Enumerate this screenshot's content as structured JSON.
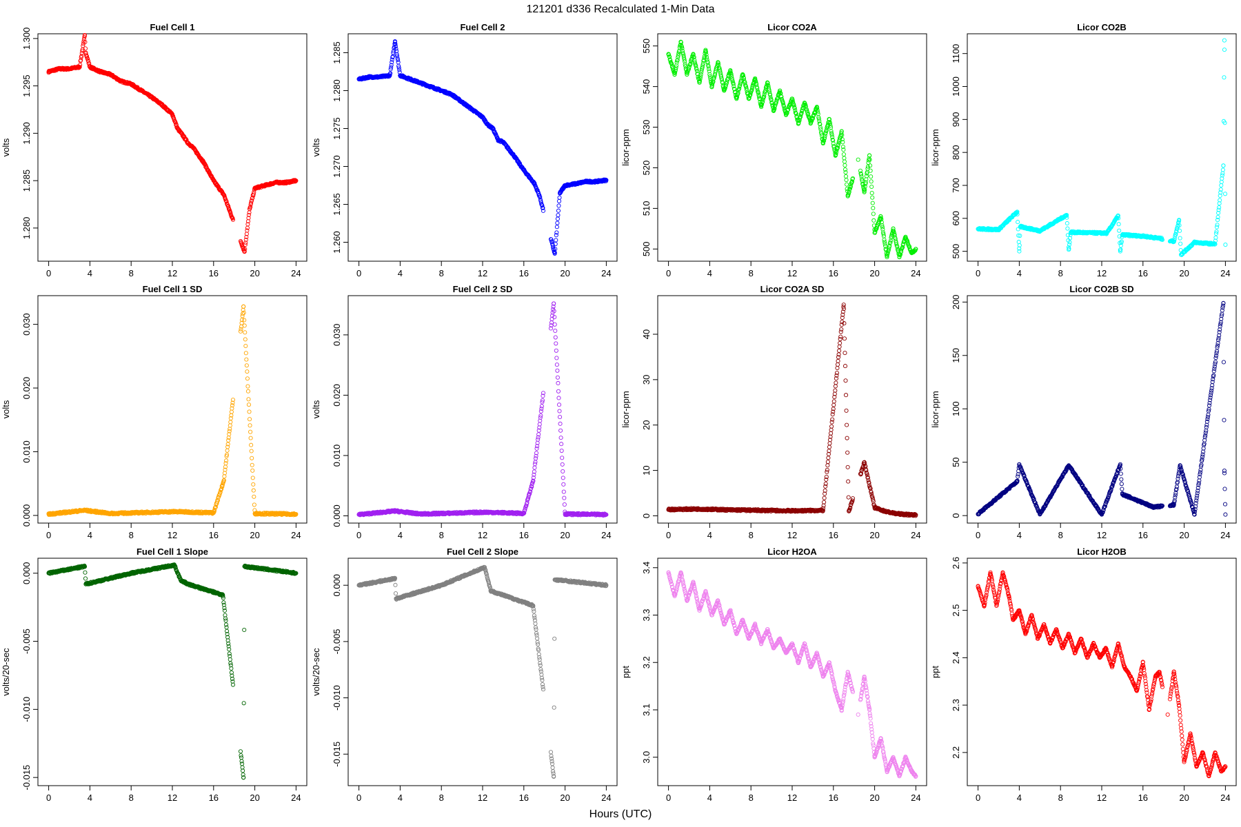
{
  "figure": {
    "title": "121201   d336   Recalculated 1-Min Data",
    "xlabel": "Hours (UTC)",
    "xticks": [
      "0",
      "4",
      "8",
      "12",
      "16",
      "20",
      "24"
    ]
  },
  "chart_data": [
    {
      "type": "scatter",
      "title": "Fuel Cell 1",
      "ylabel": "volts",
      "color": "#ff0000",
      "xlim": [
        0,
        24
      ],
      "ylim": [
        1.2765,
        1.3005
      ],
      "yticks": [
        "1.280",
        "1.285",
        "1.290",
        "1.295",
        "1.300"
      ],
      "ytick_values": [
        1.28,
        1.285,
        1.29,
        1.295,
        1.3
      ],
      "series": [
        {
          "name": "Fuel Cell 1",
          "x": [
            0,
            1,
            2,
            3,
            3.5,
            3.6,
            4,
            5,
            6,
            7,
            8,
            9,
            10,
            11,
            12,
            12.5,
            13,
            13.5,
            14,
            15,
            16,
            17,
            17.5,
            19,
            19.5,
            20,
            21,
            22,
            23,
            24
          ],
          "y": [
            1.2965,
            1.2968,
            1.2968,
            1.297,
            1.3003,
            1.2985,
            1.297,
            1.2965,
            1.2962,
            1.2955,
            1.2952,
            1.2945,
            1.2938,
            1.293,
            1.292,
            1.2905,
            1.2898,
            1.289,
            1.2885,
            1.287,
            1.285,
            1.2835,
            1.282,
            1.2775,
            1.282,
            1.2842,
            1.2845,
            1.2848,
            1.2848,
            1.285
          ]
        }
      ]
    },
    {
      "type": "scatter",
      "title": "Fuel Cell 2",
      "ylabel": "volts",
      "color": "#0000ff",
      "xlim": [
        0,
        24
      ],
      "ylim": [
        1.2575,
        1.2875
      ],
      "yticks": [
        "1.260",
        "1.265",
        "1.270",
        "1.275",
        "1.280",
        "1.285"
      ],
      "ytick_values": [
        1.26,
        1.265,
        1.27,
        1.275,
        1.28,
        1.285
      ],
      "series": [
        {
          "name": "Fuel Cell 2",
          "x": [
            0,
            1,
            2,
            3,
            3.5,
            4,
            5,
            6,
            7,
            8,
            9,
            10,
            11,
            12,
            12.5,
            13,
            13.5,
            14,
            15,
            16,
            17,
            17.5,
            19,
            19.5,
            20,
            21,
            22,
            23,
            24
          ],
          "y": [
            1.2815,
            1.2818,
            1.2818,
            1.282,
            1.2865,
            1.282,
            1.2815,
            1.281,
            1.2805,
            1.28,
            1.2795,
            1.2785,
            1.2775,
            1.2765,
            1.2755,
            1.275,
            1.2735,
            1.2732,
            1.2715,
            1.2695,
            1.2678,
            1.2662,
            1.2585,
            1.2665,
            1.2675,
            1.2677,
            1.268,
            1.268,
            1.2682
          ]
        }
      ]
    },
    {
      "type": "scatter",
      "title": "Licor CO2A",
      "ylabel": "licor-ppm",
      "color": "#00ee00",
      "xlim": [
        0,
        24
      ],
      "ylim": [
        497,
        553
      ],
      "yticks": [
        "500",
        "510",
        "520",
        "530",
        "540",
        "550"
      ],
      "ytick_values": [
        500,
        510,
        520,
        530,
        540,
        550
      ],
      "series": [
        {
          "name": "Licor CO2A",
          "x": [
            0,
            0.6,
            1.2,
            1.8,
            2.4,
            3,
            3.6,
            4.2,
            4.8,
            5.4,
            6,
            6.6,
            7.2,
            7.8,
            8.4,
            9,
            9.6,
            10.2,
            10.8,
            11.4,
            12,
            12.6,
            13.2,
            13.8,
            14.4,
            15,
            15.6,
            16.2,
            16.8,
            17.4,
            18.4,
            19,
            19.5,
            20,
            20.6,
            21.2,
            21.8,
            22.4,
            23,
            23.6,
            24
          ],
          "y": [
            548,
            543,
            551,
            543,
            548,
            541,
            549,
            540,
            546,
            539,
            544,
            537,
            543,
            537,
            542,
            535,
            541,
            534,
            539,
            533,
            537,
            531,
            536,
            531,
            535,
            526,
            532,
            523,
            529,
            513,
            522,
            514,
            523,
            504,
            508,
            498,
            505,
            498,
            503,
            499,
            500
          ]
        }
      ]
    },
    {
      "type": "scatter",
      "title": "Licor CO2B",
      "ylabel": "licor-ppm",
      "color": "#00ffff",
      "xlim": [
        0,
        24
      ],
      "ylim": [
        470,
        1160
      ],
      "yticks": [
        "500",
        "600",
        "700",
        "800",
        "900",
        "1000",
        "1100"
      ],
      "ytick_values": [
        500,
        600,
        700,
        800,
        900,
        1000,
        1100
      ],
      "series": [
        {
          "name": "Licor CO2B",
          "x": [
            0,
            2,
            3.8,
            4,
            4.1,
            6,
            8.6,
            8.8,
            9,
            11,
            12.5,
            13.6,
            13.8,
            14,
            16,
            17.5,
            19,
            19.5,
            19.7,
            21,
            23,
            23.8,
            23.9,
            24
          ],
          "y": [
            568,
            566,
            620,
            500,
            575,
            562,
            610,
            505,
            558,
            556,
            555,
            608,
            500,
            550,
            546,
            540,
            530,
            595,
            490,
            527,
            522,
            760,
            1140,
            520
          ]
        }
      ]
    },
    {
      "type": "scatter",
      "title": "Fuel Cell 1 SD",
      "ylabel": "volts",
      "color": "#ffa500",
      "xlim": [
        0,
        24
      ],
      "ylim": [
        -0.0012,
        0.0345
      ],
      "yticks": [
        "0.000",
        "0.010",
        "0.020",
        "0.030"
      ],
      "ytick_values": [
        0.0,
        0.01,
        0.02,
        0.03
      ],
      "series": [
        {
          "name": "Fuel Cell 1 SD",
          "x": [
            0,
            3.5,
            6,
            12.3,
            16,
            17,
            18.9,
            20,
            24
          ],
          "y": [
            0.0002,
            0.0008,
            0.0003,
            0.0006,
            0.0004,
            0.0055,
            0.0328,
            0.0003,
            0.0002
          ]
        }
      ]
    },
    {
      "type": "scatter",
      "title": "Fuel Cell 2 SD",
      "ylabel": "volts",
      "color": "#a020f0",
      "xlim": [
        0,
        24
      ],
      "ylim": [
        -0.0012,
        0.0365
      ],
      "yticks": [
        "0.000",
        "0.010",
        "0.020",
        "0.030"
      ],
      "ytick_values": [
        0.0,
        0.01,
        0.02,
        0.03
      ],
      "series": [
        {
          "name": "Fuel Cell 2 SD",
          "x": [
            0,
            3.5,
            6,
            12.3,
            16,
            16.9,
            18.9,
            20,
            24
          ],
          "y": [
            0.0002,
            0.0008,
            0.0003,
            0.0006,
            0.0004,
            0.0058,
            0.0352,
            0.0003,
            0.0002
          ]
        }
      ]
    },
    {
      "type": "scatter",
      "title": "Licor CO2A SD",
      "ylabel": "licor-ppm",
      "color": "#8b0000",
      "xlim": [
        0,
        24
      ],
      "ylim": [
        -1.6,
        48.5
      ],
      "yticks": [
        "0",
        "10",
        "20",
        "30",
        "40"
      ],
      "ytick_values": [
        0,
        10,
        20,
        30,
        40
      ],
      "series": [
        {
          "name": "Licor CO2A SD",
          "x": [
            0,
            3,
            6,
            9,
            12,
            15,
            17,
            17.5,
            19,
            20,
            21,
            22,
            23,
            24
          ],
          "y": [
            1.4,
            1.5,
            1.3,
            1.2,
            1.1,
            1.2,
            46.5,
            1.0,
            11.8,
            1.8,
            1.0,
            0.5,
            0.3,
            0.2
          ]
        }
      ]
    },
    {
      "type": "scatter",
      "title": "Licor CO2B SD",
      "ylabel": "licor-ppm",
      "color": "#000080",
      "xlim": [
        0,
        24
      ],
      "ylim": [
        -7,
        206
      ],
      "yticks": [
        "0",
        "50",
        "100",
        "150",
        "200"
      ],
      "ytick_values": [
        0,
        50,
        100,
        150,
        200
      ],
      "series": [
        {
          "name": "Licor CO2B SD",
          "x": [
            0,
            3.8,
            4,
            6,
            8.8,
            12,
            13.8,
            14,
            17,
            19,
            19.6,
            21,
            23.8,
            23.9,
            24
          ],
          "y": [
            1.5,
            32,
            48,
            1.2,
            47,
            1.0,
            48,
            20,
            8,
            10,
            47,
            1.0,
            199,
            42,
            1.0
          ]
        }
      ]
    },
    {
      "type": "scatter",
      "title": "Fuel Cell 1 Slope",
      "ylabel": "volts/20-sec",
      "color": "#006400",
      "xlim": [
        0,
        24
      ],
      "ylim": [
        -0.0156,
        0.0011
      ],
      "yticks": [
        "-0.015",
        "-0.010",
        "-0.005",
        "0.000"
      ],
      "ytick_values": [
        -0.015,
        -0.01,
        -0.005,
        0.0
      ],
      "series": [
        {
          "name": "Fuel Cell 1 Slope",
          "x": [
            0,
            3.5,
            3.6,
            8,
            12.2,
            12.8,
            13.5,
            16.9,
            18.9,
            19,
            24
          ],
          "y": [
            0.0,
            0.0005,
            -0.0008,
            0.0,
            0.0006,
            -0.0005,
            -0.0008,
            -0.0016,
            -0.015,
            0.0005,
            0.0
          ]
        }
      ]
    },
    {
      "type": "scatter",
      "title": "Fuel Cell 2 Slope",
      "ylabel": "volts/20-sec",
      "color": "#808080",
      "xlim": [
        0,
        24
      ],
      "ylim": [
        -0.0178,
        0.0024
      ],
      "yticks": [
        "-0.015",
        "-0.010",
        "-0.005",
        "0.000"
      ],
      "ytick_values": [
        -0.015,
        -0.01,
        -0.005,
        0.0
      ],
      "series": [
        {
          "name": "Fuel Cell 2 Slope",
          "x": [
            0,
            3.5,
            3.6,
            8,
            12.2,
            12.8,
            16.9,
            18.9,
            19,
            24
          ],
          "y": [
            0.0,
            0.0006,
            -0.0012,
            0.0,
            0.0016,
            -0.0005,
            -0.0018,
            -0.017,
            0.0005,
            0.0
          ]
        }
      ]
    },
    {
      "type": "scatter",
      "title": "Licor H2OA",
      "ylabel": "ppt",
      "color": "#ee82ee",
      "xlim": [
        0,
        24
      ],
      "ylim": [
        2.94,
        3.42
      ],
      "yticks": [
        "3.0",
        "3.1",
        "3.2",
        "3.3",
        "3.4"
      ],
      "ytick_values": [
        3.0,
        3.1,
        3.2,
        3.3,
        3.4
      ],
      "series": [
        {
          "name": "Licor H2OA",
          "x": [
            0,
            0.6,
            1.2,
            1.8,
            2.4,
            3,
            3.6,
            4.2,
            4.8,
            5.4,
            6,
            6.6,
            7.2,
            7.8,
            8.4,
            9,
            9.6,
            10.2,
            10.8,
            11.4,
            12,
            12.6,
            13.2,
            13.8,
            14.4,
            15,
            15.6,
            16.2,
            16.8,
            17.4,
            18.4,
            19,
            19.5,
            20,
            20.6,
            21.2,
            21.8,
            22.4,
            23,
            23.6,
            24
          ],
          "y": [
            3.39,
            3.34,
            3.39,
            3.33,
            3.37,
            3.31,
            3.35,
            3.3,
            3.33,
            3.28,
            3.31,
            3.26,
            3.29,
            3.25,
            3.28,
            3.24,
            3.27,
            3.23,
            3.25,
            3.22,
            3.24,
            3.2,
            3.24,
            3.19,
            3.22,
            3.17,
            3.2,
            3.14,
            3.1,
            3.18,
            3.09,
            3.17,
            3.1,
            3.0,
            3.04,
            2.97,
            3.0,
            2.96,
            3.0,
            2.97,
            2.96
          ]
        }
      ]
    },
    {
      "type": "scatter",
      "title": "Licor H2OB",
      "ylabel": "ppt",
      "color": "#ff0000",
      "xlim": [
        0,
        24
      ],
      "ylim": [
        2.13,
        2.61
      ],
      "yticks": [
        "2.2",
        "2.3",
        "2.4",
        "2.5",
        "2.6"
      ],
      "ytick_values": [
        2.2,
        2.3,
        2.4,
        2.5,
        2.6
      ],
      "series": [
        {
          "name": "Licor H2OB",
          "x": [
            0,
            0.6,
            1.2,
            1.8,
            2.4,
            3,
            3.4,
            4,
            4.6,
            5.2,
            5.8,
            6.4,
            7,
            7.6,
            8.2,
            8.8,
            9.4,
            10,
            10.6,
            11.2,
            11.8,
            12.4,
            13,
            13.6,
            14.2,
            14.8,
            15.4,
            16,
            16.6,
            17.2,
            17.6,
            18.4,
            19,
            19.5,
            20,
            20.6,
            21.2,
            21.8,
            22.4,
            23,
            23.6,
            24
          ],
          "y": [
            2.55,
            2.51,
            2.58,
            2.51,
            2.58,
            2.53,
            2.48,
            2.5,
            2.45,
            2.49,
            2.44,
            2.47,
            2.43,
            2.46,
            2.42,
            2.45,
            2.41,
            2.44,
            2.4,
            2.43,
            2.4,
            2.42,
            2.38,
            2.43,
            2.38,
            2.36,
            2.33,
            2.39,
            2.29,
            2.36,
            2.37,
            2.28,
            2.37,
            2.3,
            2.18,
            2.24,
            2.17,
            2.2,
            2.15,
            2.2,
            2.16,
            2.17
          ]
        }
      ]
    }
  ]
}
